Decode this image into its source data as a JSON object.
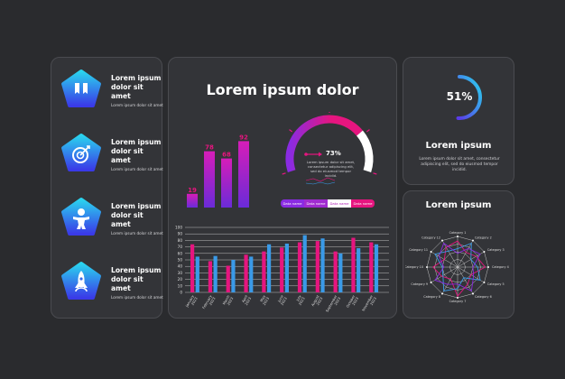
{
  "features": [
    {
      "icon": "bookmark-icon",
      "title": "Lorem ipsum dolor sit amet",
      "desc": "Lorem ipsum dolor sit amet"
    },
    {
      "icon": "target-icon",
      "title": "Lorem ipsum dolor sit amet",
      "desc": "Lorem ipsum dolor sit amet"
    },
    {
      "icon": "person-icon",
      "title": "Lorem ipsum dolor sit amet",
      "desc": "Lorem ipsum dolor sit amet"
    },
    {
      "icon": "rocket-icon",
      "title": "Lorem ipsum dolor sit amet",
      "desc": "Lorem ipsum dolor sit amet"
    }
  ],
  "center": {
    "title": "Lorem ipsum dolor",
    "speedometer": {
      "percent": "73%",
      "value": 0.73,
      "desc": "Lorem ipsum dolor sit amet, consectetur adipiscing elit, sed do eiusmod tempor incidid.",
      "tabs": [
        "Data name",
        "Data name",
        "Data name",
        "Data name"
      ],
      "active_tab": 2
    }
  },
  "gauge": {
    "percent": "51%",
    "value": 0.51,
    "title": "Lorem ipsum",
    "desc": "Lorem ipsum dolor sit amet, consectetur adipiscing elit, sed do eiusmod tempor incidid."
  },
  "radar": {
    "title": "Lorem ipsum"
  },
  "colors": {
    "background": "#2a2b2e",
    "card": "#333438",
    "pink": "#e6157f",
    "blue": "#3a9ae8",
    "purple": "#8a2be2",
    "cyan": "#2ad4ee"
  },
  "chart_data": [
    {
      "type": "bar",
      "categories": [
        "",
        "",
        "",
        ""
      ],
      "values": [
        19,
        78,
        68,
        92
      ],
      "data_labels": [
        "19",
        "78",
        "68",
        "92"
      ],
      "ylim": [
        0,
        100
      ]
    },
    {
      "type": "bar",
      "categories": [
        "January 2023",
        "February 2023",
        "March 2023",
        "April 2023",
        "May 2023",
        "June 2023",
        "July 2023",
        "August 2023",
        "September 2023",
        "October 2023",
        "November 2023"
      ],
      "series": [
        {
          "values": [
            74,
            48,
            41,
            58,
            63,
            69,
            77,
            79,
            63,
            84,
            77
          ],
          "color": "#e6157f"
        },
        {
          "values": [
            55,
            56,
            50,
            55,
            74,
            75,
            88,
            83,
            60,
            68,
            74
          ],
          "color": "#3a9ae8"
        }
      ],
      "yticks": [
        "0",
        "10",
        "20",
        "30",
        "40",
        "50",
        "60",
        "70",
        "80",
        "90",
        "100"
      ],
      "ylim": [
        0,
        100
      ],
      "grid": true
    },
    {
      "type": "radar",
      "categories": [
        "Category 1",
        "Category 2",
        "Category 3",
        "Category 4",
        "Category 5",
        "Category 6",
        "Category 7",
        "Category 8",
        "Category 9",
        "Category 10",
        "Category 11",
        "Category 12"
      ],
      "series": [
        {
          "values": [
            0.85,
            0.55,
            0.7,
            0.9,
            0.5,
            0.65,
            0.95,
            0.45,
            0.6,
            0.8,
            0.5,
            0.75
          ],
          "color": "#e6157f"
        },
        {
          "values": [
            0.6,
            0.9,
            0.5,
            0.65,
            0.85,
            0.4,
            0.7,
            0.9,
            0.55,
            0.5,
            0.85,
            0.6
          ],
          "color": "#3a9ae8"
        },
        {
          "values": [
            0.45,
            0.7,
            0.85,
            0.5,
            0.6,
            0.9,
            0.55,
            0.65,
            0.85,
            0.45,
            0.7,
            0.9
          ],
          "color": "#8a2be2"
        }
      ],
      "ylim": [
        0,
        1
      ]
    }
  ]
}
